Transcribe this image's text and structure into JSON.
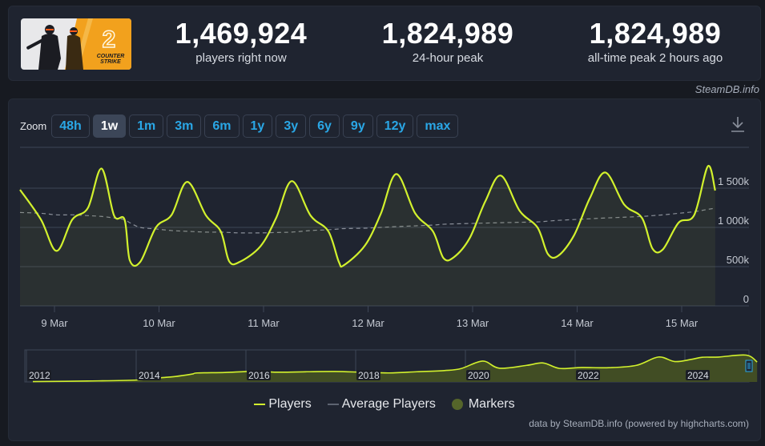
{
  "stats": [
    {
      "value": "1,469,924",
      "label": "players right now"
    },
    {
      "value": "1,824,989",
      "label": "24-hour peak"
    },
    {
      "value": "1,824,989",
      "label": "all-time peak 2 hours ago"
    }
  ],
  "game": {
    "image_alt": "Counter-Strike 2",
    "logo_text_1": "COUNTER",
    "logo_text_2": "STRIKE"
  },
  "credit_top": "SteamDB.info",
  "zoom": {
    "label": "Zoom",
    "buttons": [
      "48h",
      "1w",
      "1m",
      "3m",
      "6m",
      "1y",
      "3y",
      "6y",
      "9y",
      "12y",
      "max"
    ],
    "active": "1w"
  },
  "colors": {
    "players": "#d2f12d",
    "average": "#8a8f99",
    "markers": "#55652a",
    "accent": "#2aa7e6"
  },
  "legend": {
    "players": "Players",
    "average": "Average Players",
    "markers": "Markers"
  },
  "credit_bottom": "data by SteamDB.info (powered by highcharts.com)",
  "chart_data": [
    {
      "type": "line",
      "title": "Counter-Strike 2 players (1 week)",
      "xlabel": "",
      "ylabel": "",
      "ylim": [
        0,
        1900000
      ],
      "yticks": [
        "0",
        "500k",
        "1 000k",
        "1 500k"
      ],
      "xticks": [
        "9 Mar",
        "10 Mar",
        "11 Mar",
        "12 Mar",
        "13 Mar",
        "14 Mar",
        "15 Mar"
      ],
      "grid": true,
      "legend_position": "bottom",
      "x_days": [
        0,
        0.2,
        0.35,
        0.5,
        0.65,
        0.78,
        0.9,
        1.0,
        1.05,
        1.15,
        1.3,
        1.45,
        1.6,
        1.78,
        1.92,
        2.0,
        2.1,
        2.3,
        2.45,
        2.6,
        2.78,
        2.95,
        3.05,
        3.1,
        3.3,
        3.45,
        3.6,
        3.78,
        3.95,
        4.05,
        4.15,
        4.3,
        4.45,
        4.6,
        4.78,
        4.95,
        5.05,
        5.15,
        5.3,
        5.45,
        5.6,
        5.78,
        5.95,
        6.05,
        6.15,
        6.3,
        6.45,
        6.58,
        6.65
      ],
      "series": [
        {
          "name": "Players",
          "values": [
            1480000,
            1100000,
            700000,
            1100000,
            1250000,
            1750000,
            1150000,
            1100000,
            580000,
            560000,
            1000000,
            1160000,
            1580000,
            1150000,
            950000,
            570000,
            560000,
            760000,
            1120000,
            1590000,
            1150000,
            950000,
            560000,
            520000,
            770000,
            1170000,
            1680000,
            1180000,
            950000,
            610000,
            620000,
            860000,
            1330000,
            1660000,
            1210000,
            1000000,
            660000,
            640000,
            900000,
            1370000,
            1700000,
            1290000,
            1120000,
            730000,
            720000,
            1060000,
            1160000,
            1780000,
            1470000
          ]
        },
        {
          "name": "Average Players",
          "values": [
            1190000,
            1180000,
            1160000,
            1160000,
            1150000,
            1140000,
            1120000,
            1100000,
            1060000,
            1000000,
            980000,
            960000,
            950000,
            940000,
            940000,
            935000,
            930000,
            930000,
            935000,
            940000,
            960000,
            970000,
            980000,
            985000,
            990000,
            1000000,
            1010000,
            1020000,
            1030000,
            1040000,
            1045000,
            1050000,
            1055000,
            1060000,
            1065000,
            1070000,
            1080000,
            1090000,
            1100000,
            1110000,
            1120000,
            1130000,
            1140000,
            1150000,
            1160000,
            1180000,
            1200000,
            1230000,
            1245000
          ]
        }
      ]
    },
    {
      "type": "area",
      "title": "Navigator (all time)",
      "xticks": [
        "2012",
        "2014",
        "2016",
        "2018",
        "2020",
        "2022",
        "2024"
      ],
      "x_years": [
        2012.0,
        2013.0,
        2013.9,
        2014.3,
        2014.6,
        2014.9,
        2015.0,
        2015.5,
        2016.0,
        2016.5,
        2017.0,
        2017.5,
        2018.0,
        2018.5,
        2019.0,
        2019.5,
        2019.8,
        2020.2,
        2020.5,
        2021.0,
        2021.3,
        2021.6,
        2022.0,
        2022.5,
        2023.0,
        2023.4,
        2023.7,
        2024.0,
        2024.2,
        2024.5,
        2025.0,
        2025.2
      ],
      "series": [
        {
          "name": "Players",
          "values": [
            15000,
            40000,
            80000,
            170000,
            230000,
            330000,
            380000,
            400000,
            440000,
            410000,
            430000,
            440000,
            410000,
            380000,
            430000,
            480000,
            560000,
            880000,
            580000,
            700000,
            800000,
            570000,
            610000,
            600000,
            700000,
            1050000,
            860000,
            950000,
            1040000,
            1050000,
            1130000,
            840000
          ]
        }
      ],
      "ylim": [
        0,
        1350000
      ]
    }
  ]
}
